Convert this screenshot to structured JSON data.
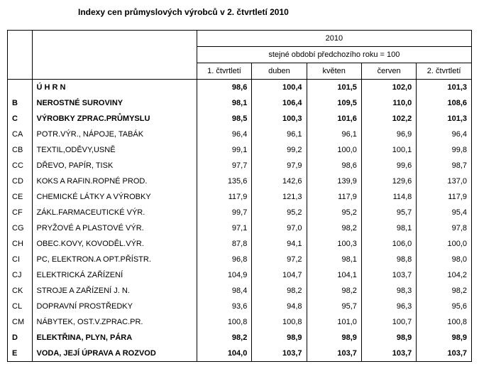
{
  "title": "Indexy cen průmyslových výrobců v 2. čtvrtletí 2010",
  "year_header": "2010",
  "sub_header": "stejné období předchozího roku = 100",
  "columns": [
    "1. čtvrtletí",
    "duben",
    "květen",
    "červen",
    "2. čtvrtletí"
  ],
  "rows": [
    {
      "code": "",
      "label": "Ú H R N",
      "bold": true,
      "vals": [
        "98,6",
        "100,4",
        "101,5",
        "102,0",
        "101,3"
      ]
    },
    {
      "code": "B",
      "label": "NEROSTNÉ SUROVINY",
      "bold": true,
      "vals": [
        "98,1",
        "106,4",
        "109,5",
        "110,0",
        "108,6"
      ]
    },
    {
      "code": "C",
      "label": "VÝROBKY ZPRAC.PRŮMYSLU",
      "bold": true,
      "vals": [
        "98,5",
        "100,3",
        "101,6",
        "102,2",
        "101,3"
      ]
    },
    {
      "code": "CA",
      "label": "POTR.VÝR., NÁPOJE, TABÁK",
      "bold": false,
      "vals": [
        "96,4",
        "96,1",
        "96,1",
        "96,9",
        "96,4"
      ]
    },
    {
      "code": "CB",
      "label": "TEXTIL,ODĚVY,USNĚ",
      "bold": false,
      "vals": [
        "99,1",
        "99,2",
        "100,0",
        "100,1",
        "99,8"
      ]
    },
    {
      "code": "CC",
      "label": "DŘEVO, PAPÍR, TISK",
      "bold": false,
      "vals": [
        "97,7",
        "97,9",
        "98,6",
        "99,6",
        "98,7"
      ]
    },
    {
      "code": "CD",
      "label": "KOKS A RAFIN.ROPNÉ PROD.",
      "bold": false,
      "vals": [
        "135,6",
        "142,6",
        "139,9",
        "129,6",
        "137,0"
      ]
    },
    {
      "code": "CE",
      "label": "CHEMICKÉ LÁTKY A  VÝROBKY",
      "bold": false,
      "vals": [
        "117,9",
        "121,3",
        "117,9",
        "114,8",
        "117,9"
      ]
    },
    {
      "code": "CF",
      "label": "ZÁKL.FARMACEUTICKÉ VÝR.",
      "bold": false,
      "vals": [
        "99,7",
        "95,2",
        "95,2",
        "95,7",
        "95,4"
      ]
    },
    {
      "code": "CG",
      "label": "PRYŽOVÉ A PLASTOVÉ VÝR.",
      "bold": false,
      "vals": [
        "97,1",
        "97,0",
        "98,2",
        "98,1",
        "97,8"
      ]
    },
    {
      "code": "CH",
      "label": "OBEC.KOVY, KOVODĚL.VÝR.",
      "bold": false,
      "vals": [
        "87,8",
        "94,1",
        "100,3",
        "106,0",
        "100,0"
      ]
    },
    {
      "code": "CI",
      "label": "PC, ELEKTRON.A OPT.PŘÍSTR.",
      "bold": false,
      "vals": [
        "96,8",
        "97,2",
        "98,1",
        "98,8",
        "98,0"
      ]
    },
    {
      "code": "CJ",
      "label": "ELEKTRICKÁ ZAŘÍZENÍ",
      "bold": false,
      "vals": [
        "104,9",
        "104,7",
        "104,1",
        "103,7",
        "104,2"
      ]
    },
    {
      "code": "CK",
      "label": "STROJE A ZAŘÍZENÍ J. N.",
      "bold": false,
      "vals": [
        "98,4",
        "98,2",
        "98,2",
        "98,3",
        "98,2"
      ]
    },
    {
      "code": "CL",
      "label": "DOPRAVNÍ PROSTŘEDKY",
      "bold": false,
      "vals": [
        "93,6",
        "94,8",
        "95,7",
        "96,3",
        "95,6"
      ]
    },
    {
      "code": "CM",
      "label": "NÁBYTEK, OST.V.ZPRAC.PR.",
      "bold": false,
      "vals": [
        "100,8",
        "100,8",
        "101,0",
        "100,7",
        "100,8"
      ]
    },
    {
      "code": "D",
      "label": "ELEKTŘINA, PLYN, PÁRA",
      "bold": true,
      "vals": [
        "98,2",
        "98,9",
        "98,9",
        "98,9",
        "98,9"
      ]
    },
    {
      "code": "E",
      "label": "VODA, JEJÍ ÚPRAVA A ROZVOD",
      "bold": true,
      "vals": [
        "104,0",
        "103,7",
        "103,7",
        "103,7",
        "103,7"
      ]
    }
  ]
}
